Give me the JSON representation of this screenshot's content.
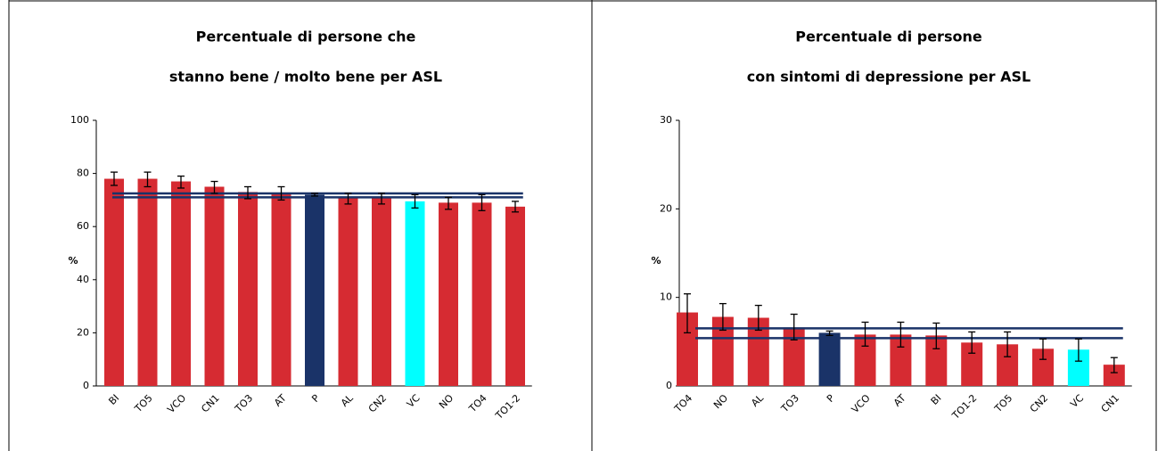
{
  "chart_data": [
    {
      "type": "bar",
      "title": [
        "Percentuale di persone che",
        "stanno bene / molto bene per ASL"
      ],
      "y_label": "%",
      "categories": [
        "BI",
        "TO5",
        "VCO",
        "CN1",
        "TO3",
        "AT",
        "P",
        "AL",
        "CN2",
        "VC",
        "NO",
        "TO4",
        "TO1-2"
      ],
      "values": [
        78,
        78,
        77,
        75,
        73,
        72.5,
        72,
        71,
        71,
        69.5,
        69,
        69,
        67.5
      ],
      "lower": [
        75.5,
        75,
        74.5,
        72.5,
        70.5,
        70,
        71.5,
        68.5,
        68.5,
        67,
        66.5,
        66,
        65.5
      ],
      "upper": [
        80.5,
        80.5,
        79,
        77,
        75,
        75,
        72.5,
        72.5,
        72.5,
        72,
        71,
        72,
        69.5
      ],
      "colors": [
        "#d62b32",
        "#d62b32",
        "#d62b32",
        "#d62b32",
        "#d62b32",
        "#d62b32",
        "#1a3368",
        "#d62b32",
        "#d62b32",
        "#00ffff",
        "#d62b32",
        "#d62b32",
        "#d62b32"
      ],
      "reference_lines": [
        72.5,
        71
      ],
      "reference_color": "#1a3368",
      "ylim": [
        0,
        100
      ],
      "yticks": [
        0,
        20,
        40,
        60,
        80,
        100
      ]
    },
    {
      "type": "bar",
      "title": [
        "Percentuale di persone",
        "con sintomi di depressione per ASL"
      ],
      "y_label": "%",
      "categories": [
        "TO4",
        "NO",
        "AL",
        "TO3",
        "P",
        "VCO",
        "AT",
        "BI",
        "TO1-2",
        "TO5",
        "CN2",
        "VC",
        "CN1"
      ],
      "values": [
        8.3,
        7.8,
        7.7,
        6.6,
        6,
        5.8,
        5.8,
        5.7,
        4.9,
        4.7,
        4.2,
        4.1,
        2.4
      ],
      "lower": [
        6,
        6.3,
        6.3,
        5.2,
        5.7,
        4.5,
        4.4,
        4.2,
        3.7,
        3.3,
        3,
        2.8,
        1.5
      ],
      "upper": [
        10.4,
        9.3,
        9.1,
        8.1,
        6.2,
        7.2,
        7.2,
        7.1,
        6.1,
        6.1,
        5.3,
        5.3,
        3.2
      ],
      "colors": [
        "#d62b32",
        "#d62b32",
        "#d62b32",
        "#d62b32",
        "#1a3368",
        "#d62b32",
        "#d62b32",
        "#d62b32",
        "#d62b32",
        "#d62b32",
        "#d62b32",
        "#00ffff",
        "#d62b32"
      ],
      "reference_lines": [
        6.5,
        5.4
      ],
      "reference_color": "#1a3368",
      "ylim": [
        0,
        30
      ],
      "yticks": [
        0,
        10,
        20,
        30
      ]
    }
  ]
}
